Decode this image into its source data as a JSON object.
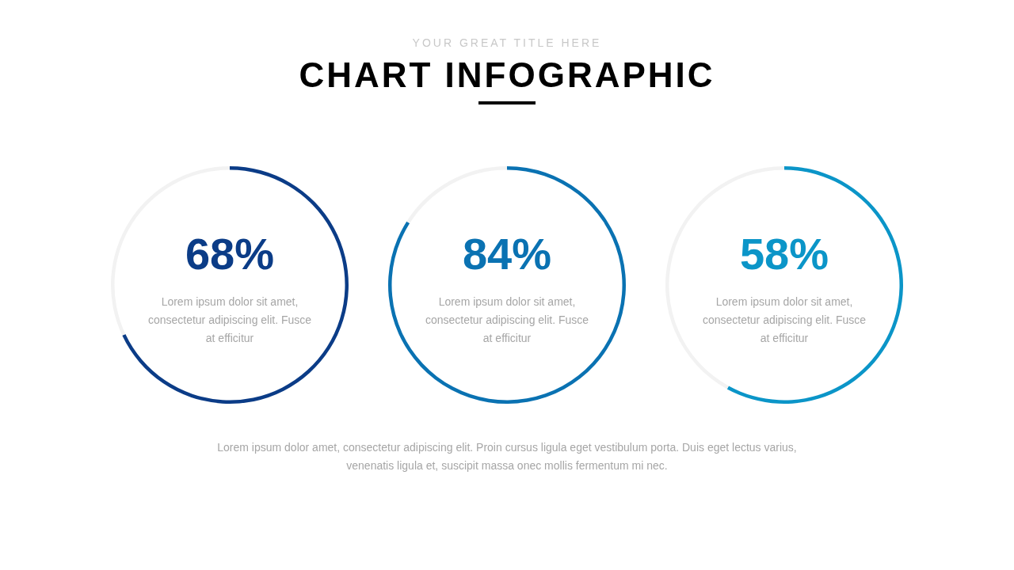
{
  "chart_data": [
    {
      "type": "donut",
      "categories": [
        null,
        null
      ],
      "values": [
        68,
        32
      ],
      "colors": [
        "#0b3c87",
        "#f2f2f2"
      ],
      "value_labels": [
        "68%",
        null
      ],
      "annotations": [
        "Lorem ipsum dolor sit amet, consectetur adipiscing elit. Fusce at efficitur"
      ]
    },
    {
      "type": "donut",
      "subtitle": "YOUR GREAT TITLE HERE",
      "title": "CHART INFOGRAPHIC",
      "categories": [
        null,
        null
      ],
      "values": [
        84,
        16
      ],
      "colors": [
        "#0a72b2",
        "#f2f2f2"
      ],
      "value_labels": [
        "84%",
        null
      ],
      "annotations": [
        "Lorem ipsum dolor sit amet, consectetur adipiscing elit. Fusce at efficitur"
      ]
    },
    {
      "type": "donut",
      "categories": [
        null,
        null
      ],
      "values": [
        58,
        42
      ],
      "colors": [
        "#0b95c8",
        "#f2f2f2"
      ],
      "value_labels": [
        "58%",
        null
      ],
      "annotations": [
        "Lorem ipsum dolor sit amet, consectetur adipiscing elit. Fusce at efficitur",
        "Lorem ipsum dolor amet, consectetur adipiscing elit. Proin cursus ligula eget vestibulum porta. Duis eget lectus varius, venenatis ligula et, suscipit massa onec mollis fermentum mi nec."
      ]
    }
  ]
}
